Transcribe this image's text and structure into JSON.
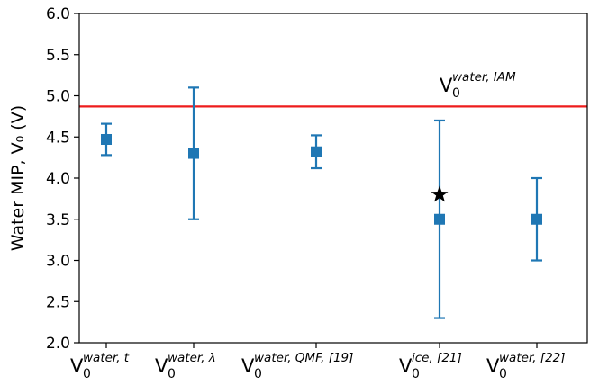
{
  "chart_data": {
    "type": "scatter",
    "ylabel": "Water MIP, V₀ (V)",
    "ylim": [
      2.0,
      6.0
    ],
    "yticks": [
      "2.0",
      "2.5",
      "3.0",
      "3.5",
      "4.0",
      "4.5",
      "5.0",
      "5.5",
      "6.0"
    ],
    "ytick_values": [
      2.0,
      2.5,
      3.0,
      3.5,
      4.0,
      4.5,
      5.0,
      5.5,
      6.0
    ],
    "grid": false,
    "categories": [
      {
        "main": "V",
        "sub": "0",
        "sup": "water, t"
      },
      {
        "main": "V",
        "sub": "0",
        "sup": "water, λ"
      },
      {
        "main": "V",
        "sub": "0",
        "sup": "water, QMF, [19]"
      },
      {
        "main": "V",
        "sub": "0",
        "sup": "ice, [21]"
      },
      {
        "main": "V",
        "sub": "0",
        "sup": "water, [22]"
      }
    ],
    "points": [
      {
        "value": 4.47,
        "err_low": 4.28,
        "err_high": 4.66
      },
      {
        "value": 4.3,
        "err_low": 3.5,
        "err_high": 5.1
      },
      {
        "value": 4.32,
        "err_low": 4.12,
        "err_high": 4.52
      },
      {
        "value": 3.5,
        "err_low": 2.3,
        "err_high": 4.7
      },
      {
        "value": 3.5,
        "err_low": 3.0,
        "err_high": 4.0
      }
    ],
    "star": {
      "category_index": 3,
      "value": 3.8
    },
    "hline": {
      "value": 4.87,
      "color": "#ee1c1c",
      "label": {
        "main": "V",
        "sub": "0",
        "sup": "water, IAM"
      }
    },
    "marker_color": "#1f77b4"
  }
}
